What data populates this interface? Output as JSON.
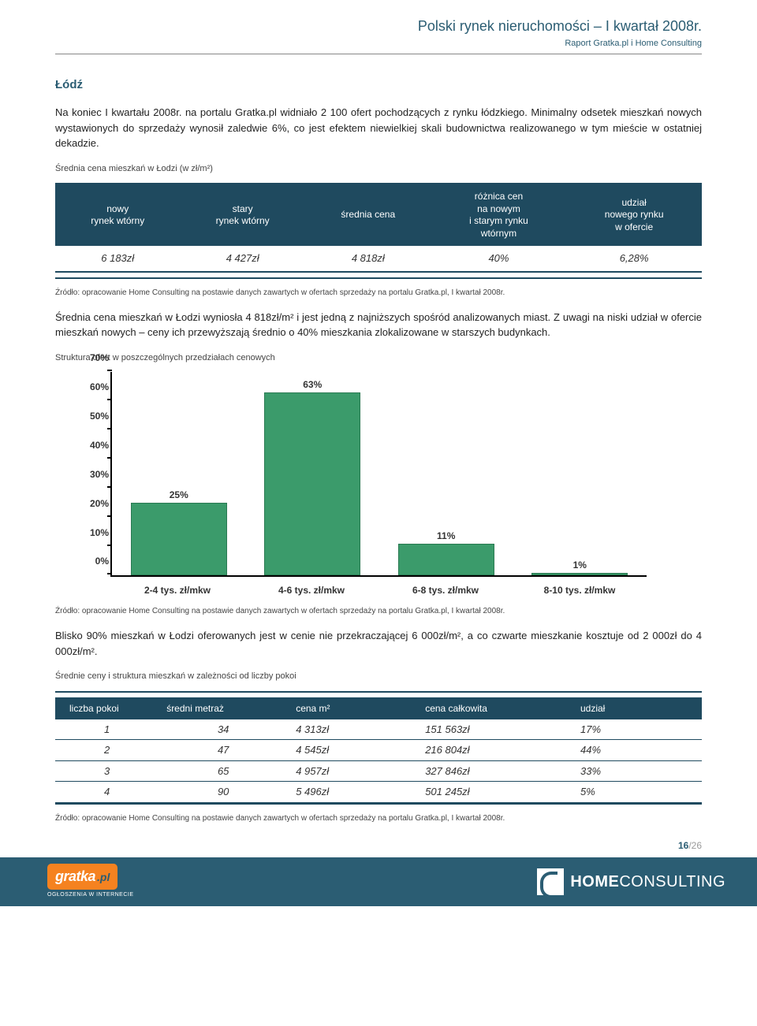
{
  "header": {
    "title": "Polski rynek nieruchomości – I kwartał 2008r.",
    "subtitle": "Raport Gratka.pl i Home Consulting"
  },
  "city": "Łódź",
  "para1": "Na koniec I kwartału 2008r. na portalu Gratka.pl widniało 2 100 ofert pochodzących z rynku łódzkiego. Minimalny odsetek mieszkań nowych wystawionych do sprzedaży wynosił zaledwie 6%, co jest efektem niewielkiej skali budownictwa realizowanego w tym mieście w ostatniej dekadzie.",
  "caption1": "Średnia cena mieszkań w Łodzi (w zł/m²)",
  "table1": {
    "headers": [
      "nowy\nrynek wtórny",
      "stary\nrynek wtórny",
      "średnia cena",
      "różnica cen\nna nowym\ni starym rynku\nwtórnym",
      "udział\nnowego rynku\nw ofercie"
    ],
    "row": [
      "6 183zł",
      "4 427zł",
      "4 818zł",
      "40%",
      "6,28%"
    ]
  },
  "source": "Źródło: opracowanie Home Consulting na postawie danych zawartych w ofertach sprzedaży na portalu Gratka.pl, I kwartał 2008r.",
  "para2": "Średnia cena mieszkań w Łodzi wyniosła 4 818zł/m² i jest jedną z najniższych spośród analizowanych miast. Z uwagi na niski udział w ofercie mieszkań nowych – ceny ich przewyższają średnio o 40% mieszkania zlokalizowane w starszych budynkach.",
  "caption2": "Struktura ofert w poszczególnych przedziałach cenowych",
  "chart": {
    "type": "bar",
    "ylim": [
      0,
      70
    ],
    "ytick_step": 10,
    "yticks": [
      "0%",
      "10%",
      "20%",
      "30%",
      "40%",
      "50%",
      "60%",
      "70%"
    ],
    "categories": [
      "2-4 tys. zł/mkw",
      "4-6 tys. zł/mkw",
      "6-8 tys. zł/mkw",
      "8-10 tys. zł/mkw"
    ],
    "values": [
      25,
      63,
      11,
      1
    ],
    "value_labels": [
      "25%",
      "63%",
      "11%",
      "1%"
    ],
    "bar_color": "#3b9b6b",
    "bar_border": "#2a7a52",
    "axis_color": "#000000",
    "background": "#ffffff",
    "label_fontsize": 12,
    "label_fontweight": "bold"
  },
  "para3": "Blisko 90% mieszkań w Łodzi oferowanych jest w cenie nie przekraczającej 6 000zł/m², a co czwarte mieszkanie kosztuje od 2 000zł do 4 000zł/m².",
  "caption3": "Średnie ceny i struktura mieszkań w zależności od liczby pokoi",
  "table2": {
    "headers": [
      "liczba pokoi",
      "średni metraż",
      "cena m²",
      "cena całkowita",
      "udział"
    ],
    "rows": [
      [
        "1",
        "34",
        "4 313zł",
        "151 563zł",
        "17%"
      ],
      [
        "2",
        "47",
        "4 545zł",
        "216 804zł",
        "44%"
      ],
      [
        "3",
        "65",
        "4 957zł",
        "327 846zł",
        "33%"
      ],
      [
        "4",
        "90",
        "5 496zł",
        "501 245zł",
        "5%"
      ]
    ]
  },
  "page": {
    "current": "16",
    "total": "/26"
  },
  "footer": {
    "gratka": "gratka",
    "gratka_pl": ".pl",
    "gratka_sub": "OGŁOSZENIA W INTERNECIE",
    "hc_home": "HOME",
    "hc_consulting": "CONSULTING"
  }
}
